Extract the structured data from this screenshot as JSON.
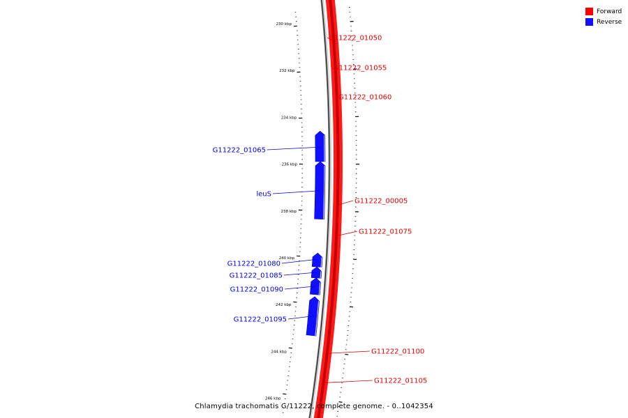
{
  "legend": {
    "items": [
      {
        "label": "Forward",
        "color": "#ff0000"
      },
      {
        "label": "Reverse",
        "color": "#1010ff"
      }
    ]
  },
  "caption": "Chlamydia trachomatis G/11222, complete genome. - 0..1042354",
  "ticks": [
    {
      "kbp": 230,
      "label": "230 kbp"
    },
    {
      "kbp": 232,
      "label": "232 kbp"
    },
    {
      "kbp": 234,
      "label": "234 kbp"
    },
    {
      "kbp": 236,
      "label": "236 kbp"
    },
    {
      "kbp": 238,
      "label": "238 kbp"
    },
    {
      "kbp": 240,
      "label": "240 kbp"
    },
    {
      "kbp": 242,
      "label": "242 kbp"
    },
    {
      "kbp": 244,
      "label": "244 kbp"
    },
    {
      "kbp": 246,
      "label": "246 kbp"
    }
  ],
  "genes": [
    {
      "name": "G11222_01050",
      "strand": "forward"
    },
    {
      "name": "G11222_01055",
      "strand": "forward"
    },
    {
      "name": "G11222_01060",
      "strand": "forward"
    },
    {
      "name": "G11222_01065",
      "strand": "reverse"
    },
    {
      "name": "leuS",
      "strand": "reverse"
    },
    {
      "name": "G11222_00005",
      "strand": "forward"
    },
    {
      "name": "G11222_01075",
      "strand": "forward"
    },
    {
      "name": "G11222_01080",
      "strand": "reverse"
    },
    {
      "name": "G11222_01085",
      "strand": "reverse"
    },
    {
      "name": "G11222_01090",
      "strand": "reverse"
    },
    {
      "name": "G11222_01095",
      "strand": "reverse"
    },
    {
      "name": "G11222_01100",
      "strand": "forward"
    },
    {
      "name": "G11222_01105",
      "strand": "forward"
    }
  ]
}
